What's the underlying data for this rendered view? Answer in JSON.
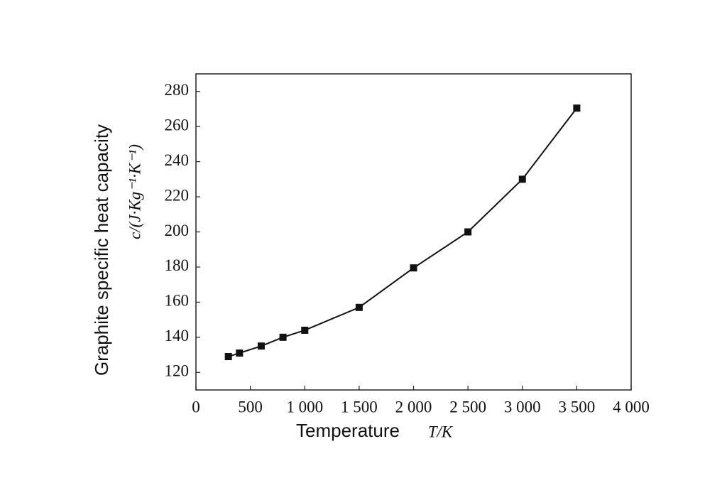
{
  "chart_data": {
    "type": "line",
    "y_label": "Graphite specific heat capacity",
    "y_unit": "c/(J·Kg⁻¹·K⁻¹)",
    "x_label": "Temperature",
    "x_unit": "T/K",
    "x": [
      298,
      400,
      600,
      800,
      1000,
      1500,
      2000,
      2500,
      3000,
      3500
    ],
    "values": [
      129,
      131,
      135,
      140,
      144,
      157,
      179.5,
      200,
      230,
      270.5
    ],
    "color": "#111111",
    "marker": "square",
    "xlim": [
      0,
      4000
    ],
    "xticks": [
      0,
      500,
      {
        "value": 1000,
        "label": "1 000"
      },
      {
        "value": 1500,
        "label": "1 500"
      },
      {
        "value": 2000,
        "label": "2 000"
      },
      {
        "value": 2500,
        "label": "2 500"
      },
      {
        "value": 3000,
        "label": "3 000"
      },
      {
        "value": 3500,
        "label": "3 500"
      },
      {
        "value": 4000,
        "label": "4 000"
      }
    ],
    "ylim": [
      110,
      290
    ],
    "yticks": [
      120,
      140,
      160,
      180,
      200,
      220,
      240,
      260,
      280
    ]
  }
}
